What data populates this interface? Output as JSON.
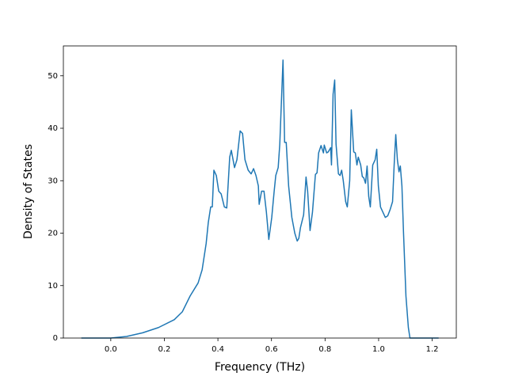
{
  "chart_data": {
    "type": "line",
    "x_label": "Frequency (THz)",
    "y_label": "Density of States",
    "xlim": [
      -0.177,
      1.29
    ],
    "ylim": [
      0,
      55.7
    ],
    "xticks": [
      {
        "value": 0,
        "label": "0.0"
      },
      0.2,
      0.4,
      0.6,
      0.8,
      {
        "value": 1,
        "label": "1.0"
      },
      1.2
    ],
    "yticks": [
      0,
      10,
      20,
      30,
      40,
      50
    ],
    "series": [
      {
        "color": "#1f77b4",
        "x": [
          -0.11,
          0,
          0.059,
          0.119,
          0.178,
          0.237,
          0.267,
          0.296,
          0.326,
          0.341,
          0.356,
          0.364,
          0.373,
          0.379,
          0.385,
          0.394,
          0.403,
          0.412,
          0.424,
          0.433,
          0.439,
          0.444,
          0.45,
          0.462,
          0.471,
          0.483,
          0.492,
          0.501,
          0.513,
          0.524,
          0.533,
          0.542,
          0.551,
          0.554,
          0.563,
          0.572,
          0.581,
          0.59,
          0.601,
          0.61,
          0.616,
          0.625,
          0.631,
          0.637,
          0.643,
          0.649,
          0.655,
          0.664,
          0.676,
          0.687,
          0.696,
          0.702,
          0.708,
          0.72,
          0.729,
          0.735,
          0.744,
          0.753,
          0.764,
          0.77,
          0.776,
          0.785,
          0.794,
          0.797,
          0.806,
          0.812,
          0.821,
          0.824,
          0.83,
          0.836,
          0.841,
          0.85,
          0.856,
          0.862,
          0.868,
          0.877,
          0.883,
          0.892,
          0.898,
          0.907,
          0.913,
          0.919,
          0.924,
          0.933,
          0.939,
          0.945,
          0.951,
          0.957,
          0.963,
          0.969,
          0.978,
          0.987,
          0.993,
          0.999,
          1.007,
          1.016,
          1.025,
          1.034,
          1.043,
          1.052,
          1.058,
          1.064,
          1.07,
          1.076,
          1.081,
          1.087,
          1.093,
          1.102,
          1.111,
          1.117,
          1.224
        ],
        "values": [
          0,
          0,
          0.3,
          1,
          2,
          3.5,
          5,
          8,
          10.5,
          13,
          18,
          22,
          25,
          25,
          32,
          31,
          28,
          27.5,
          25,
          24.8,
          30,
          34.5,
          35.8,
          32.5,
          34,
          39.5,
          39,
          34,
          32,
          31.3,
          32.3,
          31,
          29,
          25.5,
          28,
          28,
          24,
          18.8,
          23,
          28,
          31,
          32.5,
          37,
          45,
          53,
          37.3,
          37.3,
          29,
          23,
          20,
          18.5,
          19,
          21,
          23.5,
          30.7,
          28,
          20.5,
          24,
          31.2,
          31.5,
          35.3,
          36.7,
          35.3,
          36.8,
          35.3,
          35.5,
          36.3,
          33,
          46.5,
          49.2,
          37,
          31.3,
          31,
          32,
          30,
          26,
          25,
          30,
          43.5,
          35.5,
          35.3,
          33,
          34.5,
          33,
          30.8,
          30.5,
          29.5,
          32.8,
          27,
          25,
          33,
          34,
          36,
          29,
          25,
          24,
          23,
          23.3,
          24.5,
          26,
          33,
          38.8,
          34,
          31.7,
          32.8,
          29,
          20,
          8,
          2,
          0,
          0
        ]
      }
    ]
  }
}
